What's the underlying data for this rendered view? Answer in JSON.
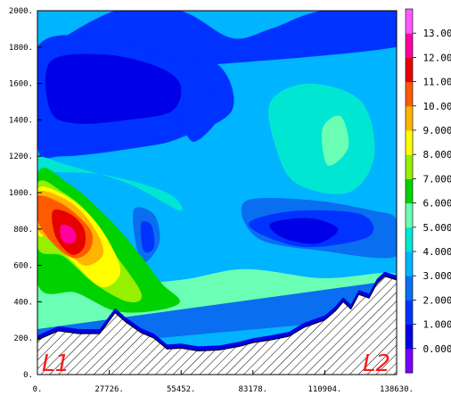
{
  "chart_data": {
    "type": "heatmap",
    "title": "",
    "xlabel": "",
    "ylabel": "",
    "xlim": [
      0,
      138630
    ],
    "ylim": [
      0,
      2000
    ],
    "x_ticks": [
      0,
      27726,
      55452,
      83178,
      110904,
      138630
    ],
    "x_tick_labels": [
      "0.",
      "27726.",
      "55452.",
      "83178.",
      "110904.",
      "138630."
    ],
    "y_ticks": [
      0,
      200,
      400,
      600,
      800,
      1000,
      1200,
      1400,
      1600,
      1800,
      2000
    ],
    "y_tick_labels": [
      "0.",
      "200.",
      "400.",
      "600.",
      "800.",
      "1000.",
      "1200.",
      "1400.",
      "1600.",
      "1800.",
      "2000."
    ],
    "colorbar": {
      "levels": [
        0,
        1,
        2,
        3,
        4,
        5,
        6,
        7,
        8,
        9,
        10,
        11,
        12,
        13
      ],
      "labels": [
        "0.000",
        "1.000",
        "2.000",
        "3.000",
        "4.000",
        "5.000",
        "6.000",
        "7.000",
        "8.000",
        "9.000",
        "10.00",
        "11.00",
        "12.00",
        "13.00"
      ],
      "colors": [
        "#7a00ff",
        "#0000e6",
        "#0033ff",
        "#0a6ef0",
        "#00b4ff",
        "#00e6d2",
        "#6affb4",
        "#00d200",
        "#96f000",
        "#ffff00",
        "#ffb400",
        "#ff5a00",
        "#e60000",
        "#ff00a0",
        "#ff5aff"
      ]
    },
    "terrain": {
      "x": [
        0,
        8000,
        16000,
        24000,
        30000,
        34000,
        40000,
        45000,
        50000,
        55452,
        62000,
        70000,
        78000,
        83178,
        90000,
        97000,
        103000,
        110904,
        115000,
        118000,
        121000,
        124000,
        128000,
        131000,
        134000,
        138630
      ],
      "elevation": [
        190,
        240,
        225,
        225,
        340,
        290,
        230,
        200,
        140,
        145,
        130,
        135,
        155,
        175,
        190,
        210,
        260,
        300,
        350,
        400,
        360,
        440,
        420,
        500,
        540,
        520
      ]
    },
    "regions": [
      {
        "level": 4,
        "x": [
          0,
          138630,
          138630,
          0
        ],
        "y": [
          0,
          0,
          2000,
          2000
        ]
      },
      {
        "level": 2,
        "x": [
          0,
          30000,
          55000,
          75000,
          90000,
          110000,
          138630,
          138630,
          0
        ],
        "y": [
          1750,
          2000,
          2000,
          1850,
          1900,
          2000,
          2000,
          1800,
          1650
        ]
      },
      {
        "level": 2,
        "x": [
          0,
          25000,
          50000,
          70000,
          75000,
          55000,
          40000,
          10000,
          0
        ],
        "y": [
          1800,
          1850,
          1750,
          1700,
          1450,
          1300,
          1250,
          1200,
          1250
        ]
      },
      {
        "level": 1,
        "x": [
          5000,
          25000,
          45000,
          55000,
          52000,
          35000,
          15000,
          5000
        ],
        "y": [
          1720,
          1760,
          1700,
          1600,
          1450,
          1400,
          1380,
          1450
        ]
      },
      {
        "level": 2,
        "x": [
          55000,
          68000,
          72000,
          60000
        ],
        "y": [
          1500,
          1550,
          1450,
          1280
        ]
      },
      {
        "level": 5,
        "x": [
          90000,
          105000,
          125000,
          130000,
          120000,
          100000,
          92000
        ],
        "y": [
          1500,
          1600,
          1500,
          1200,
          1000,
          1050,
          1250
        ]
      },
      {
        "level": 6,
        "x": [
          110000,
          117000,
          120000,
          112000
        ],
        "y": [
          1350,
          1420,
          1250,
          1150
        ]
      },
      {
        "level": 5,
        "x": [
          0,
          25000,
          50000,
          55000,
          35000,
          12000,
          0
        ],
        "y": [
          1120,
          1100,
          1000,
          900,
          1050,
          1150,
          1200
        ]
      },
      {
        "level": 3,
        "x": [
          37000,
          45000,
          47000,
          40000
        ],
        "y": [
          900,
          880,
          720,
          620
        ]
      },
      {
        "level": 2,
        "x": [
          40000,
          44000,
          45000,
          41000
        ],
        "y": [
          830,
          820,
          700,
          680
        ]
      },
      {
        "level": 3,
        "x": [
          80000,
          105000,
          130000,
          138630,
          138630,
          110000,
          85000
        ],
        "y": [
          950,
          960,
          900,
          850,
          650,
          680,
          750
        ]
      },
      {
        "level": 2,
        "x": [
          82000,
          100000,
          125000,
          128000,
          105000,
          88000
        ],
        "y": [
          840,
          900,
          880,
          760,
          700,
          760
        ]
      },
      {
        "level": 1,
        "x": [
          90000,
          105000,
          116000,
          108000,
          95000
        ],
        "y": [
          830,
          860,
          800,
          720,
          750
        ]
      },
      {
        "level": 6,
        "x": [
          0,
          25000,
          55000,
          80000,
          110000,
          135000,
          138630,
          130000,
          100000,
          70000,
          40000,
          15000,
          0
        ],
        "y": [
          650,
          500,
          520,
          580,
          530,
          560,
          520,
          450,
          350,
          250,
          200,
          200,
          200
        ]
      },
      {
        "level": 7,
        "x": [
          0,
          12000,
          28000,
          40000,
          48000,
          55000,
          45000,
          30000,
          15000,
          0
        ],
        "y": [
          1100,
          1050,
          850,
          650,
          500,
          400,
          350,
          350,
          450,
          500
        ]
      },
      {
        "level": 8,
        "x": [
          0,
          10000,
          20000,
          28000,
          40000,
          35000,
          22000,
          10000,
          0
        ],
        "y": [
          1050,
          1000,
          880,
          700,
          450,
          400,
          500,
          650,
          700
        ]
      },
      {
        "level": 9,
        "x": [
          0,
          10000,
          20000,
          28000,
          32000,
          25000,
          15000,
          5000,
          0
        ],
        "y": [
          1020,
          990,
          880,
          720,
          560,
          480,
          600,
          750,
          780
        ]
      },
      {
        "level": 10,
        "x": [
          0,
          10000,
          18000,
          24000,
          25000,
          18000,
          10000,
          0
        ],
        "y": [
          1000,
          970,
          880,
          750,
          650,
          600,
          700,
          800
        ]
      },
      {
        "level": 11,
        "x": [
          0,
          8000,
          15000,
          21000,
          20000,
          14000,
          6000,
          0
        ],
        "y": [
          980,
          950,
          880,
          780,
          680,
          640,
          720,
          850
        ]
      },
      {
        "level": 12,
        "x": [
          6000,
          13000,
          18000,
          18000,
          13000,
          7000
        ],
        "y": [
          900,
          880,
          800,
          700,
          660,
          760
        ]
      },
      {
        "level": 13,
        "x": [
          9000,
          13000,
          15000,
          13000,
          9500
        ],
        "y": [
          820,
          810,
          760,
          720,
          740
        ]
      },
      {
        "level": 3,
        "x": [
          0,
          138630,
          138630,
          0
        ],
        "y": [
          140,
          320,
          520,
          250
        ]
      }
    ],
    "annotations": [
      "L1",
      "L2"
    ]
  }
}
